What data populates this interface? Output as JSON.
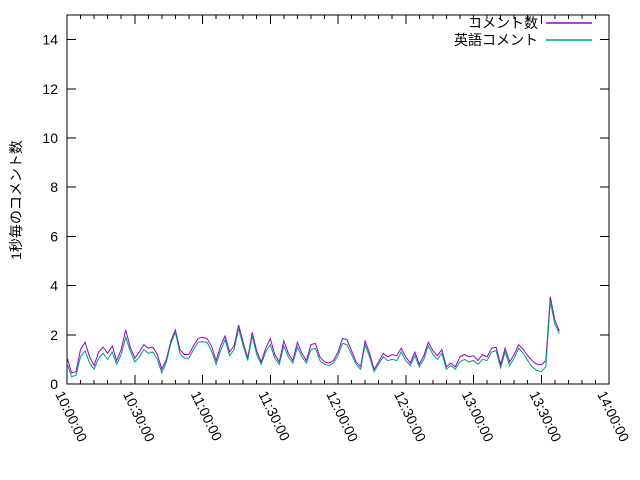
{
  "window": {
    "background": "#ffffff"
  },
  "chart_data": {
    "type": "line",
    "title": "",
    "ylabel": "1秒毎のコメント数",
    "xlabel": "",
    "grid": false,
    "legend_position": "top-right-inside",
    "ylim": [
      0,
      15
    ],
    "yticks": [
      0,
      2,
      4,
      6,
      8,
      10,
      12,
      14
    ],
    "x_axis": {
      "range_minutes": 240,
      "major_tick_every_minutes": 30,
      "minor_tick_every_minutes": 6,
      "tick_labels": [
        "10:00:00",
        "10:30:00",
        "11:00:00",
        "11:30:00",
        "12:00:00",
        "12:30:00",
        "13:00:00",
        "13:30:00",
        "14:00:00"
      ],
      "label_rotation_deg": 64
    },
    "sample_start_time": "10:00:00",
    "sample_interval_minutes": 2,
    "series": [
      {
        "name": "コメント数",
        "color": "#9400d3",
        "values": [
          1.1,
          0.45,
          0.5,
          1.4,
          1.7,
          1.1,
          0.75,
          1.3,
          1.5,
          1.25,
          1.55,
          0.95,
          1.4,
          2.2,
          1.5,
          1.05,
          1.3,
          1.6,
          1.45,
          1.5,
          1.2,
          0.6,
          1.0,
          1.75,
          2.2,
          1.4,
          1.2,
          1.2,
          1.55,
          1.85,
          1.9,
          1.85,
          1.55,
          0.95,
          1.55,
          1.95,
          1.3,
          1.55,
          2.4,
          1.7,
          1.05,
          2.1,
          1.35,
          0.9,
          1.45,
          1.85,
          1.2,
          0.9,
          1.75,
          1.25,
          0.95,
          1.7,
          1.25,
          0.95,
          1.6,
          1.65,
          1.1,
          0.9,
          0.85,
          0.95,
          1.3,
          1.85,
          1.8,
          1.35,
          0.9,
          0.7,
          1.75,
          1.25,
          0.6,
          0.9,
          1.25,
          1.1,
          1.2,
          1.15,
          1.45,
          1.1,
          0.85,
          1.3,
          0.8,
          1.15,
          1.7,
          1.35,
          1.15,
          1.4,
          0.7,
          0.85,
          0.7,
          1.1,
          1.2,
          1.1,
          1.15,
          0.95,
          1.2,
          1.1,
          1.45,
          1.5,
          0.8,
          1.45,
          0.9,
          1.2,
          1.6,
          1.4,
          1.15,
          0.95,
          0.8,
          0.78,
          0.95,
          3.55,
          2.6,
          2.15
        ]
      },
      {
        "name": "英語コメント",
        "color": "#009e73",
        "values": [
          0.85,
          0.3,
          0.35,
          1.1,
          1.35,
          0.85,
          0.6,
          1.05,
          1.25,
          1.0,
          1.3,
          0.8,
          1.2,
          1.9,
          1.35,
          0.9,
          1.1,
          1.4,
          1.25,
          1.3,
          1.0,
          0.45,
          0.9,
          1.65,
          2.1,
          1.25,
          1.05,
          1.05,
          1.4,
          1.7,
          1.72,
          1.7,
          1.35,
          0.8,
          1.35,
          1.8,
          1.15,
          1.4,
          2.25,
          1.55,
          0.95,
          1.95,
          1.2,
          0.8,
          1.3,
          1.6,
          1.05,
          0.8,
          1.55,
          1.1,
          0.85,
          1.5,
          1.1,
          0.85,
          1.4,
          1.45,
          0.95,
          0.8,
          0.75,
          0.85,
          1.15,
          1.65,
          1.6,
          1.2,
          0.8,
          0.6,
          1.6,
          1.1,
          0.5,
          0.8,
          1.1,
          0.95,
          1.0,
          0.95,
          1.3,
          0.95,
          0.75,
          1.15,
          0.7,
          1.0,
          1.55,
          1.2,
          1.0,
          1.25,
          0.6,
          0.75,
          0.6,
          0.9,
          1.0,
          0.9,
          0.95,
          0.8,
          1.0,
          0.95,
          1.3,
          1.35,
          0.65,
          1.3,
          0.75,
          1.05,
          1.45,
          1.25,
          0.95,
          0.7,
          0.55,
          0.5,
          0.7,
          3.35,
          2.45,
          2.05
        ]
      }
    ],
    "colors": {
      "axis": "#000000",
      "background": "#ffffff"
    }
  }
}
